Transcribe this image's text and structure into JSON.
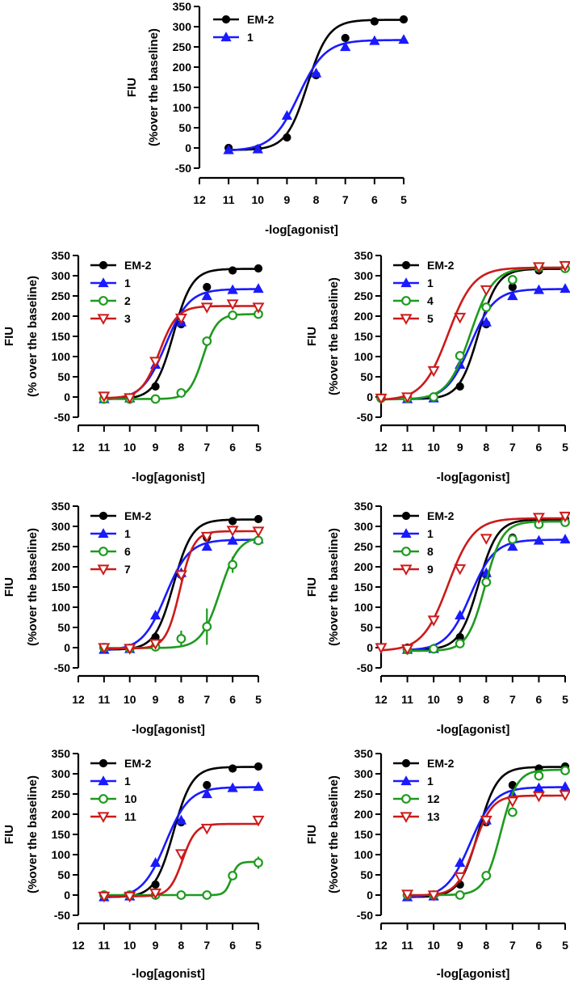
{
  "figure_title": "",
  "colors": {
    "black": "#000000",
    "blue": "#1a1aff",
    "green": "#1e9a1e",
    "red": "#cc1a1a"
  },
  "chart_data": [
    {
      "type": "line",
      "panel": "top",
      "ylabel": "FIU",
      "ylabel2": "(%over the baseline)",
      "xlabel": "-log[agonist]",
      "xlim": [
        12,
        5
      ],
      "ylim": [
        -50,
        350
      ],
      "xticks": [
        "12",
        "11",
        "10",
        "9",
        "8",
        "7",
        "6",
        "5"
      ],
      "yticks": [
        "350",
        "300",
        "250",
        "200",
        "150",
        "100",
        "50",
        "0",
        "-50"
      ],
      "legend": "top-left",
      "series": [
        {
          "name": "EM-2",
          "color": "black",
          "marker": "circle",
          "x": [
            11,
            10,
            9,
            8,
            7,
            6,
            5
          ],
          "y": [
            0,
            -2,
            26,
            180,
            272,
            313,
            318
          ],
          "fit": {
            "bottom": -5,
            "top": 317,
            "ec50": 8.3,
            "hill": 1.2
          }
        },
        {
          "name": "1",
          "color": "blue",
          "marker": "triangle-up",
          "x": [
            11,
            10,
            9,
            8,
            7,
            6,
            5
          ],
          "y": [
            -5,
            -3,
            80,
            185,
            250,
            265,
            268
          ],
          "fit": {
            "bottom": -7,
            "top": 267,
            "ec50": 8.6,
            "hill": 0.95
          }
        }
      ]
    },
    {
      "type": "line",
      "panel": "row1-left",
      "ylabel": "FIU",
      "ylabel2": "(% over the baseline)",
      "xlabel": "-log[agonist]",
      "xlim": [
        12,
        5
      ],
      "ylim": [
        -50,
        350
      ],
      "xticks": [
        "12",
        "11",
        "10",
        "9",
        "8",
        "7",
        "6",
        "5"
      ],
      "yticks": [
        "350",
        "300",
        "250",
        "200",
        "150",
        "100",
        "50",
        "0",
        "-50"
      ],
      "legend": "top-left",
      "series": [
        {
          "name": "EM-2",
          "color": "black",
          "marker": "circle",
          "x": [
            11,
            10,
            9,
            8,
            7,
            6,
            5
          ],
          "y": [
            0,
            -2,
            26,
            180,
            272,
            313,
            318
          ],
          "fit": {
            "bottom": -5,
            "top": 317,
            "ec50": 8.3,
            "hill": 1.2
          }
        },
        {
          "name": "1",
          "color": "blue",
          "marker": "triangle-up",
          "x": [
            11,
            10,
            9,
            8,
            7,
            6,
            5
          ],
          "y": [
            -5,
            -3,
            80,
            185,
            250,
            265,
            268
          ],
          "fit": {
            "bottom": -7,
            "top": 267,
            "ec50": 8.6,
            "hill": 0.95
          }
        },
        {
          "name": "2",
          "color": "green",
          "marker": "circle-open",
          "x": [
            11,
            10,
            9,
            8,
            7,
            6,
            5
          ],
          "y": [
            -5,
            -5,
            -5,
            10,
            138,
            202,
            205
          ],
          "fit": {
            "bottom": -5,
            "top": 205,
            "ec50": 7.15,
            "hill": 1.6
          }
        },
        {
          "name": "3",
          "color": "red",
          "marker": "triangle-down-open",
          "x": [
            11,
            10,
            9,
            8,
            7,
            6,
            5
          ],
          "y": [
            2,
            -2,
            88,
            195,
            222,
            230,
            222
          ],
          "fit": {
            "bottom": -3,
            "top": 225,
            "ec50": 8.85,
            "hill": 1.25
          }
        }
      ]
    },
    {
      "type": "line",
      "panel": "row1-right",
      "ylabel": "FIU",
      "ylabel2": "(%over the baseline)",
      "xlabel": "-log[agonist]",
      "xlim": [
        12,
        5
      ],
      "ylim": [
        -50,
        350
      ],
      "xticks": [
        "12",
        "11",
        "10",
        "9",
        "8",
        "7",
        "6",
        "5"
      ],
      "yticks": [
        "350",
        "300",
        "250",
        "200",
        "150",
        "100",
        "50",
        "0",
        "-50"
      ],
      "legend": "top-left",
      "series": [
        {
          "name": "EM-2",
          "color": "black",
          "marker": "circle",
          "x": [
            11,
            10,
            9,
            8,
            7,
            6,
            5
          ],
          "y": [
            0,
            -2,
            26,
            180,
            272,
            313,
            318
          ],
          "fit": {
            "bottom": -5,
            "top": 317,
            "ec50": 8.3,
            "hill": 1.2
          }
        },
        {
          "name": "1",
          "color": "blue",
          "marker": "triangle-up",
          "x": [
            11,
            10,
            9,
            8,
            7,
            6,
            5
          ],
          "y": [
            -5,
            -3,
            80,
            185,
            250,
            265,
            268
          ],
          "fit": {
            "bottom": -7,
            "top": 267,
            "ec50": 8.6,
            "hill": 0.95
          }
        },
        {
          "name": "4",
          "color": "green",
          "marker": "circle-open",
          "x": [
            12,
            11,
            10,
            9,
            8,
            7,
            6,
            5
          ],
          "y": [
            -3,
            -3,
            0,
            102,
            222,
            290,
            320,
            318
          ],
          "fit": {
            "bottom": -6,
            "top": 320,
            "ec50": 8.6,
            "hill": 1.0
          }
        },
        {
          "name": "5",
          "color": "red",
          "marker": "triangle-down-open",
          "x": [
            12,
            11,
            10,
            9,
            8,
            6,
            5
          ],
          "y": [
            -3,
            0,
            65,
            197,
            265,
            322,
            325
          ],
          "fit": {
            "bottom": -8,
            "top": 320,
            "ec50": 9.45,
            "hill": 0.9
          }
        }
      ]
    },
    {
      "type": "line",
      "panel": "row2-left",
      "ylabel": "FIU",
      "ylabel2": "(%over the baseline)",
      "xlabel": "-log[agonist]",
      "xlim": [
        12,
        5
      ],
      "ylim": [
        -50,
        350
      ],
      "xticks": [
        "12",
        "11",
        "10",
        "9",
        "8",
        "7",
        "6",
        "5"
      ],
      "yticks": [
        "350",
        "300",
        "250",
        "200",
        "150",
        "100",
        "50",
        "0",
        "-50"
      ],
      "legend": "top-left",
      "series": [
        {
          "name": "EM-2",
          "color": "black",
          "marker": "circle",
          "x": [
            11,
            10,
            9,
            8,
            7,
            6,
            5
          ],
          "y": [
            0,
            -2,
            26,
            180,
            272,
            313,
            318
          ],
          "fit": {
            "bottom": -5,
            "top": 317,
            "ec50": 8.3,
            "hill": 1.2
          }
        },
        {
          "name": "1",
          "color": "blue",
          "marker": "triangle-up",
          "x": [
            11,
            10,
            9,
            8,
            7,
            6,
            5
          ],
          "y": [
            -5,
            -3,
            80,
            185,
            250,
            265,
            268
          ],
          "fit": {
            "bottom": -7,
            "top": 267,
            "ec50": 8.6,
            "hill": 0.95
          }
        },
        {
          "name": "6",
          "color": "green",
          "marker": "circle-open",
          "x": [
            11,
            10,
            9,
            8,
            7,
            6,
            5
          ],
          "y": [
            0,
            -2,
            2,
            22,
            52,
            205,
            265
          ],
          "err": [
            0,
            0,
            0,
            20,
            45,
            20,
            10
          ],
          "fit": {
            "bottom": -1,
            "top": 275,
            "ec50": 6.5,
            "hill": 1.2
          }
        },
        {
          "name": "7",
          "color": "red",
          "marker": "triangle-down-open",
          "x": [
            11,
            10,
            9,
            8,
            7,
            6,
            5
          ],
          "y": [
            0,
            -2,
            10,
            180,
            275,
            290,
            288
          ],
          "fit": {
            "bottom": -2,
            "top": 288,
            "ec50": 8.05,
            "hill": 1.6
          }
        }
      ]
    },
    {
      "type": "line",
      "panel": "row2-right",
      "ylabel": "FIU",
      "ylabel2": "(%over the baseline)",
      "xlabel": "-log[agonist]",
      "xlim": [
        12,
        5
      ],
      "ylim": [
        -50,
        350
      ],
      "xticks": [
        "12",
        "11",
        "10",
        "9",
        "8",
        "7",
        "6",
        "5"
      ],
      "yticks": [
        "350",
        "300",
        "250",
        "200",
        "150",
        "100",
        "50",
        "0",
        "-50"
      ],
      "legend": "top-left",
      "series": [
        {
          "name": "EM-2",
          "color": "black",
          "marker": "circle",
          "x": [
            11,
            10,
            9,
            8,
            7,
            6,
            5
          ],
          "y": [
            0,
            -2,
            26,
            180,
            272,
            313,
            318
          ],
          "fit": {
            "bottom": -5,
            "top": 317,
            "ec50": 8.3,
            "hill": 1.2
          }
        },
        {
          "name": "1",
          "color": "blue",
          "marker": "triangle-up",
          "x": [
            11,
            10,
            9,
            8,
            7,
            6,
            5
          ],
          "y": [
            -5,
            -3,
            80,
            185,
            250,
            265,
            268
          ],
          "fit": {
            "bottom": -7,
            "top": 267,
            "ec50": 8.6,
            "hill": 0.95
          }
        },
        {
          "name": "8",
          "color": "green",
          "marker": "circle-open",
          "x": [
            11,
            10,
            9,
            8,
            7,
            6,
            5
          ],
          "y": [
            -5,
            -3,
            10,
            162,
            268,
            305,
            310
          ],
          "fit": {
            "bottom": -8,
            "top": 312,
            "ec50": 8.05,
            "hill": 1.3
          }
        },
        {
          "name": "9",
          "color": "red",
          "marker": "triangle-down-open",
          "x": [
            12,
            11,
            10,
            9,
            8,
            6,
            5
          ],
          "y": [
            0,
            -3,
            68,
            195,
            270,
            322,
            325
          ],
          "fit": {
            "bottom": -8,
            "top": 320,
            "ec50": 9.45,
            "hill": 0.9
          }
        }
      ]
    },
    {
      "type": "line",
      "panel": "row3-left",
      "ylabel": "FIU",
      "ylabel2": "(%over the baseline)",
      "xlabel": "-log[agonist]",
      "xlim": [
        12,
        5
      ],
      "ylim": [
        -50,
        350
      ],
      "xticks": [
        "12",
        "11",
        "10",
        "9",
        "8",
        "7",
        "6",
        "5"
      ],
      "yticks": [
        "350",
        "300",
        "250",
        "200",
        "150",
        "100",
        "50",
        "0",
        "-50"
      ],
      "legend": "top-left",
      "series": [
        {
          "name": "EM-2",
          "color": "black",
          "marker": "circle",
          "x": [
            11,
            10,
            9,
            8,
            7,
            6,
            5
          ],
          "y": [
            0,
            -2,
            26,
            180,
            272,
            313,
            318
          ],
          "fit": {
            "bottom": -5,
            "top": 317,
            "ec50": 8.3,
            "hill": 1.2
          }
        },
        {
          "name": "1",
          "color": "blue",
          "marker": "triangle-up",
          "x": [
            11,
            10,
            9,
            8,
            7,
            6,
            5
          ],
          "y": [
            -5,
            -3,
            80,
            185,
            250,
            265,
            268
          ],
          "fit": {
            "bottom": -7,
            "top": 267,
            "ec50": 8.6,
            "hill": 0.95
          }
        },
        {
          "name": "10",
          "color": "green",
          "marker": "circle-open",
          "x": [
            11,
            10,
            9,
            8,
            7,
            6,
            5
          ],
          "y": [
            0,
            0,
            0,
            0,
            0,
            48,
            80
          ],
          "err": [
            0,
            0,
            0,
            0,
            0,
            0,
            15
          ],
          "fit": {
            "bottom": 0,
            "top": 82,
            "ec50": 6.05,
            "hill": 3.5
          }
        },
        {
          "name": "11",
          "color": "red",
          "marker": "triangle-down-open",
          "x": [
            11,
            10,
            9,
            8,
            7,
            5
          ],
          "y": [
            -3,
            -3,
            5,
            102,
            165,
            185
          ],
          "fit": {
            "bottom": -3,
            "top": 176,
            "ec50": 7.95,
            "hill": 1.7
          }
        }
      ]
    },
    {
      "type": "line",
      "panel": "row3-right",
      "ylabel": "FIU",
      "ylabel2": "(%over the baseline)",
      "xlabel": "-log[agonist]",
      "xlim": [
        12,
        5
      ],
      "ylim": [
        -50,
        350
      ],
      "xticks": [
        "12",
        "11",
        "10",
        "9",
        "8",
        "7",
        "6",
        "5"
      ],
      "yticks": [
        "350",
        "300",
        "250",
        "200",
        "150",
        "100",
        "50",
        "0",
        "-50"
      ],
      "legend": "top-left",
      "series": [
        {
          "name": "EM-2",
          "color": "black",
          "marker": "circle",
          "x": [
            11,
            10,
            9,
            8,
            7,
            6,
            5
          ],
          "y": [
            0,
            -2,
            26,
            180,
            272,
            313,
            318
          ],
          "fit": {
            "bottom": -5,
            "top": 317,
            "ec50": 8.3,
            "hill": 1.2
          }
        },
        {
          "name": "1",
          "color": "blue",
          "marker": "triangle-up",
          "x": [
            11,
            10,
            9,
            8,
            7,
            6,
            5
          ],
          "y": [
            -5,
            -3,
            80,
            185,
            250,
            265,
            268
          ],
          "fit": {
            "bottom": -7,
            "top": 267,
            "ec50": 8.6,
            "hill": 0.95
          }
        },
        {
          "name": "12",
          "color": "green",
          "marker": "circle-open",
          "x": [
            11,
            10,
            9,
            8,
            7,
            6,
            5
          ],
          "y": [
            0,
            0,
            0,
            48,
            205,
            295,
            308
          ],
          "fit": {
            "bottom": 0,
            "top": 310,
            "ec50": 7.45,
            "hill": 1.4
          }
        },
        {
          "name": "13",
          "color": "red",
          "marker": "triangle-down-open",
          "x": [
            11,
            10,
            9,
            8,
            7,
            6,
            5
          ],
          "y": [
            2,
            0,
            45,
            185,
            232,
            245,
            248
          ],
          "fit": {
            "bottom": -1,
            "top": 246,
            "ec50": 8.45,
            "hill": 1.3
          }
        }
      ]
    }
  ]
}
